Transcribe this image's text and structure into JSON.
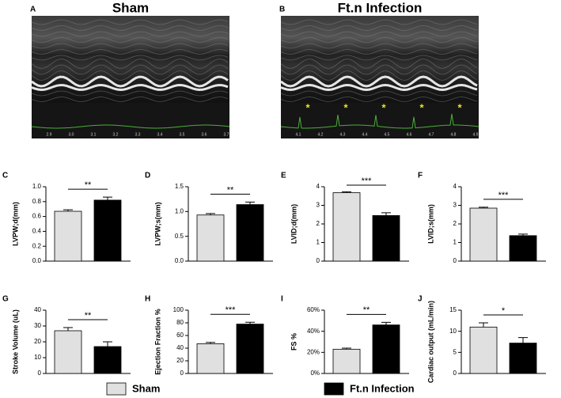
{
  "echo_panels": [
    {
      "label": "A",
      "title": "Sham",
      "time_labels": [
        "2.9",
        "3.0",
        "3.1",
        "3.2",
        "3.3",
        "3.4",
        "3.5",
        "3.6",
        "3.7"
      ],
      "markers": []
    },
    {
      "label": "B",
      "title": "Ft.n Infection",
      "time_labels": [
        "4.1",
        "4.2",
        "4.3",
        "4.4",
        "4.5",
        "4.6",
        "4.7",
        "4.8",
        "4.9"
      ],
      "markers": [
        "*",
        "*",
        "*",
        "*",
        "*"
      ]
    }
  ],
  "legend": [
    {
      "name": "Sham",
      "color": "#e0e0e0"
    },
    {
      "name": "Ft.n Infection",
      "color": "#000000"
    }
  ],
  "chart_data": [
    {
      "type": "bar",
      "label": "C",
      "ylabel": "LVPW;d(mm)",
      "values": [
        0.67,
        0.82
      ],
      "errors": [
        0.02,
        0.04
      ],
      "significance": "**",
      "ylim": [
        0,
        1
      ],
      "yticks": [
        {
          "value": 0,
          "label": "0.0"
        },
        0.2,
        0.4,
        0.6,
        0.8,
        {
          "value": 1,
          "label": "1.0"
        }
      ]
    },
    {
      "type": "bar",
      "label": "D",
      "ylabel": "LVPW;s(mm)",
      "values": [
        0.93,
        1.14
      ],
      "errors": [
        0.03,
        0.05
      ],
      "significance": "**",
      "ylim": [
        0,
        1.5
      ],
      "yticks": [
        {
          "value": 0,
          "label": "0.0"
        },
        0.5,
        {
          "value": 1,
          "label": "1.0"
        },
        1.5
      ]
    },
    {
      "type": "bar",
      "label": "E",
      "ylabel": "LVID;d(mm)",
      "values": [
        3.68,
        2.45
      ],
      "errors": [
        0.05,
        0.15
      ],
      "significance": "***",
      "ylim": [
        0,
        4
      ],
      "yticks": [
        0,
        1,
        2,
        3,
        4
      ]
    },
    {
      "type": "bar",
      "label": "F",
      "ylabel": "LVID;s(mm)",
      "values": [
        2.85,
        1.37
      ],
      "errors": [
        0.05,
        0.08
      ],
      "significance": "***",
      "ylim": [
        0,
        4
      ],
      "yticks": [
        0,
        1,
        2,
        3,
        4
      ]
    },
    {
      "type": "bar",
      "label": "G",
      "ylabel": "Stroke Volume (uL)",
      "values": [
        27,
        17
      ],
      "errors": [
        2,
        3
      ],
      "significance": "**",
      "ylim": [
        0,
        40
      ],
      "yticks": [
        0,
        10,
        20,
        30,
        40
      ]
    },
    {
      "type": "bar",
      "label": "H",
      "ylabel": "Ejection Fraction %",
      "values": [
        47,
        78
      ],
      "errors": [
        2,
        3
      ],
      "significance": "***",
      "ylim": [
        0,
        100
      ],
      "yticks": [
        0,
        20,
        40,
        60,
        80,
        100
      ]
    },
    {
      "type": "bar",
      "label": "I",
      "ylabel": "FS %",
      "values": [
        23,
        46
      ],
      "errors": [
        1,
        2.5
      ],
      "significance": "**",
      "ylim": [
        0,
        60
      ],
      "yticks": [
        {
          "value": 0,
          "label": "0%"
        },
        {
          "value": 20,
          "label": "20%"
        },
        {
          "value": 40,
          "label": "40%"
        },
        {
          "value": 60,
          "label": "60%"
        }
      ]
    },
    {
      "type": "bar",
      "label": "J",
      "ylabel": "Cardiac output (mL/min)",
      "values": [
        11,
        7.2
      ],
      "errors": [
        1,
        1.3
      ],
      "significance": "*",
      "ylim": [
        0,
        15
      ],
      "yticks": [
        0,
        5,
        10,
        15
      ]
    }
  ]
}
